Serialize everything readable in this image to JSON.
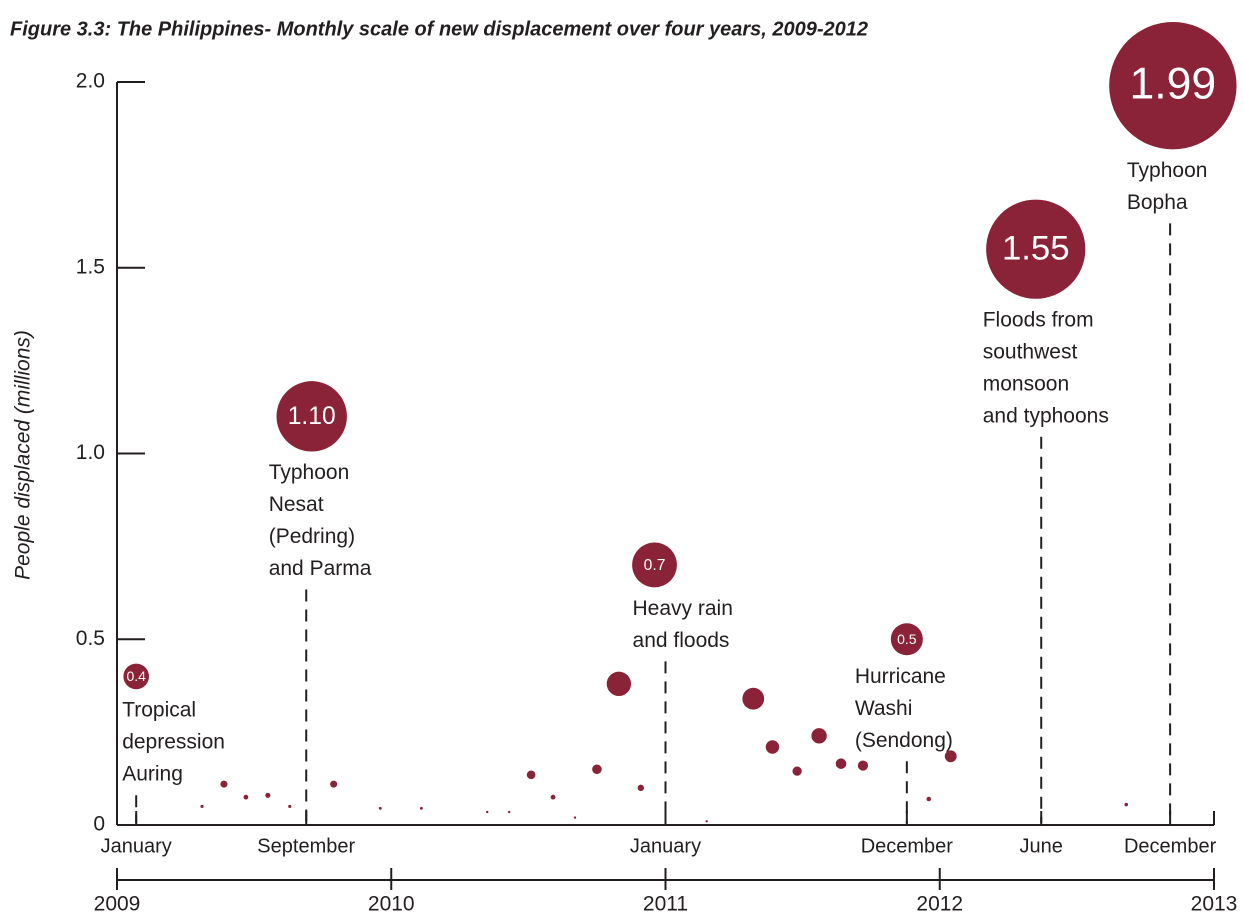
{
  "chart_data": {
    "type": "bubble",
    "title": "Figure 3.3: The Philippines- Monthly scale of new displacement over four years, 2009-2012",
    "y_label": "People displaced (millions)",
    "color": "#8a2238",
    "ylim": [
      0,
      2
    ],
    "yticks": [
      0,
      0.5,
      {
        "value": 1,
        "label": "1.0"
      },
      1.5,
      {
        "value": 2,
        "label": "2.0"
      }
    ],
    "xlim": [
      2009,
      2013
    ],
    "xticks": [
      2009,
      2010,
      2011,
      2012,
      2013
    ],
    "month_ticks": [
      {
        "value": 2009.07,
        "label": "January"
      },
      {
        "value": 2009.69,
        "label": "September"
      },
      {
        "value": 2011.0,
        "label": "January"
      },
      {
        "value": 2011.88,
        "label": "December"
      },
      {
        "value": 2012.37,
        "label": "June"
      },
      {
        "value": 2012.84,
        "label": "December"
      }
    ],
    "x": [
      2009.07,
      2009.31,
      2009.39,
      2009.47,
      2009.55,
      2009.63,
      2009.71,
      2009.79,
      2009.96,
      2010.11,
      2010.35,
      2010.43,
      2010.51,
      2010.59,
      2010.67,
      2010.75,
      2010.83,
      2010.91,
      2010.96,
      2011.15,
      2011.32,
      2011.39,
      2011.48,
      2011.56,
      2011.64,
      2011.72,
      2011.88,
      2011.96,
      2012.04,
      2012.35,
      2012.68,
      2012.85
    ],
    "values": [
      0.4,
      0.05,
      0.11,
      0.075,
      0.08,
      0.05,
      1.1,
      0.11,
      0.045,
      0.045,
      0.035,
      0.035,
      0.135,
      0.075,
      0.02,
      0.15,
      0.38,
      0.1,
      0.7,
      0.01,
      0.34,
      0.21,
      0.145,
      0.24,
      0.165,
      0.16,
      0.5,
      0.07,
      0.185,
      1.55,
      0.055,
      1.99
    ],
    "value_labels": [
      "0.4",
      null,
      null,
      null,
      null,
      null,
      "1.10",
      null,
      null,
      null,
      null,
      null,
      null,
      null,
      null,
      null,
      null,
      null,
      "0.7",
      null,
      null,
      null,
      null,
      null,
      null,
      null,
      "0.5",
      null,
      null,
      "1.55",
      null,
      "1.99"
    ],
    "annotations": [
      [
        "Tropical",
        "depression",
        "Auring"
      ],
      [
        "Typhoon",
        "Nesat",
        "(Pedring)",
        "and Parma"
      ],
      [
        "Heavy rain",
        "and floods"
      ],
      [
        "Hurricane",
        "Washi",
        "(Sendong)"
      ],
      [
        "Floods from",
        "southwest",
        "monsoon",
        "and typhoons"
      ],
      [
        "Typhoon",
        "Bopha"
      ]
    ]
  }
}
